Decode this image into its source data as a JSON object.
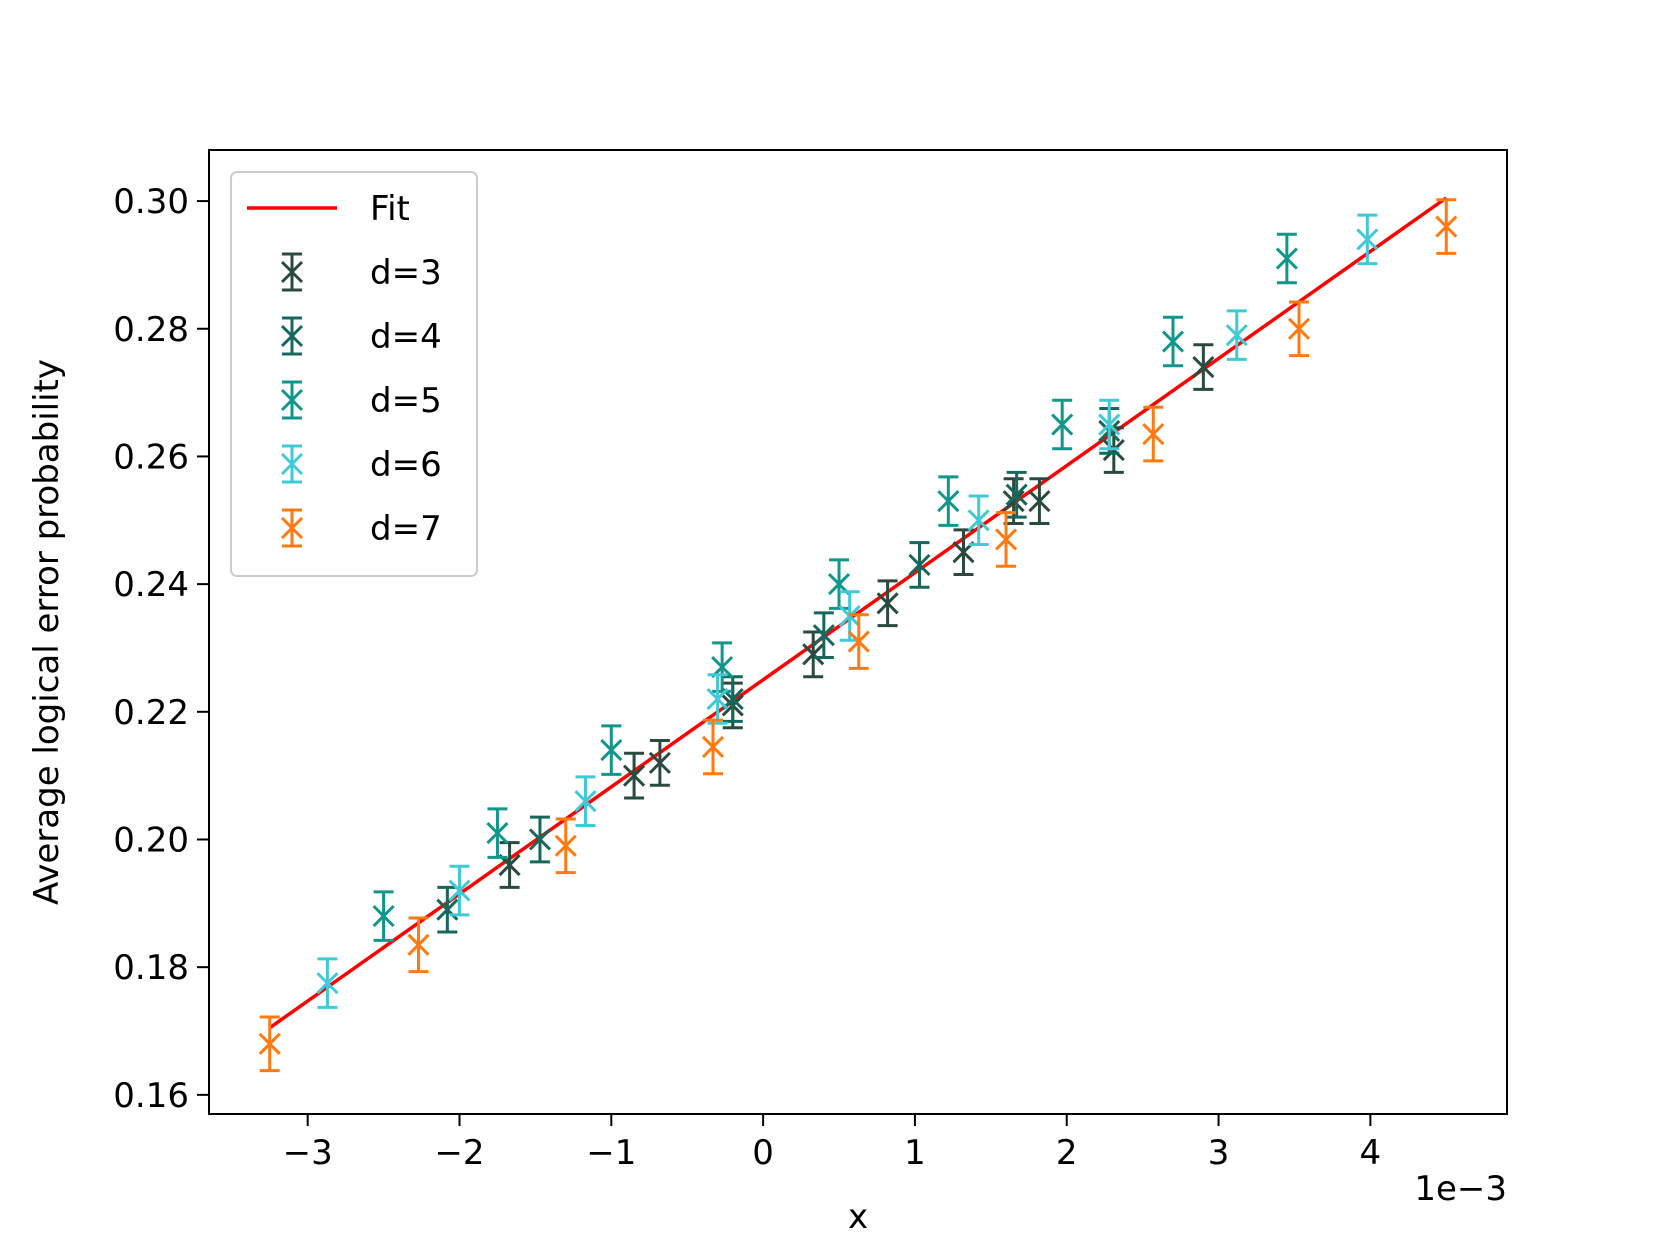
{
  "chart_data": {
    "type": "scatter",
    "xlabel": "x",
    "ylabel": "Average logical error probability",
    "x_offset_label": "1e−3",
    "x_scale": 0.001,
    "xlim": [
      -3.65,
      4.9
    ],
    "ylim": [
      0.157,
      0.308
    ],
    "x_ticks": [
      -3,
      -2,
      -1,
      0,
      1,
      2,
      3,
      4
    ],
    "x_tick_labels": [
      "−3",
      "−2",
      "−1",
      "0",
      "1",
      "2",
      "3",
      "4"
    ],
    "y_ticks": [
      0.16,
      0.18,
      0.2,
      0.22,
      0.24,
      0.26,
      0.28,
      0.3
    ],
    "y_tick_labels": [
      "0.16",
      "0.18",
      "0.20",
      "0.22",
      "0.24",
      "0.26",
      "0.28",
      "0.30"
    ],
    "grid": false,
    "legend_position": "top-left",
    "fit": {
      "name": "Fit",
      "color": "#ff0000",
      "x": [
        -3.25,
        4.5
      ],
      "y": [
        0.1705,
        0.3005
      ]
    },
    "series": [
      {
        "name": "d=3",
        "color": "#2a4a3e",
        "x": [
          -1.67,
          -0.85,
          -0.68,
          -0.2,
          0.33,
          0.82,
          1.32,
          1.65,
          1.82,
          2.31,
          2.9
        ],
        "y": [
          0.196,
          0.21,
          0.212,
          0.221,
          0.229,
          0.237,
          0.245,
          0.253,
          0.253,
          0.261,
          0.274
        ],
        "err": [
          0.0035,
          0.0035,
          0.0035,
          0.0035,
          0.0035,
          0.0035,
          0.0035,
          0.0035,
          0.0035,
          0.0035,
          0.0035
        ]
      },
      {
        "name": "d=4",
        "color": "#16685c",
        "x": [
          -2.08,
          -1.47,
          -0.2,
          0.4,
          1.03,
          1.67,
          2.28
        ],
        "y": [
          0.189,
          0.2,
          0.222,
          0.232,
          0.243,
          0.254,
          0.264
        ],
        "err": [
          0.0035,
          0.0035,
          0.0035,
          0.0035,
          0.0035,
          0.0035,
          0.0035
        ]
      },
      {
        "name": "d=5",
        "color": "#10968a",
        "x": [
          -2.5,
          -1.75,
          -1.0,
          -0.27,
          0.5,
          1.22,
          1.97,
          2.7,
          3.45
        ],
        "y": [
          0.188,
          0.201,
          0.214,
          0.227,
          0.24,
          0.253,
          0.265,
          0.278,
          0.291
        ],
        "err": [
          0.0038,
          0.0038,
          0.0038,
          0.0038,
          0.0038,
          0.0038,
          0.0038,
          0.0038,
          0.0038
        ]
      },
      {
        "name": "d=6",
        "color": "#3fcad6",
        "x": [
          -2.87,
          -2.0,
          -1.17,
          -0.3,
          0.57,
          1.42,
          2.28,
          3.12,
          3.98
        ],
        "y": [
          0.1775,
          0.192,
          0.206,
          0.222,
          0.235,
          0.25,
          0.265,
          0.279,
          0.294
        ],
        "err": [
          0.0038,
          0.0038,
          0.0038,
          0.0038,
          0.0038,
          0.0038,
          0.0038,
          0.0038,
          0.0038
        ]
      },
      {
        "name": "d=7",
        "color": "#ff7a10",
        "x": [
          -3.25,
          -2.27,
          -1.3,
          -0.33,
          0.63,
          1.6,
          2.57,
          3.53,
          4.5
        ],
        "y": [
          0.168,
          0.1835,
          0.199,
          0.2145,
          0.231,
          0.247,
          0.2635,
          0.28,
          0.296
        ],
        "err": [
          0.0042,
          0.0042,
          0.0042,
          0.0042,
          0.0042,
          0.0042,
          0.0042,
          0.0042,
          0.0042
        ]
      }
    ]
  }
}
